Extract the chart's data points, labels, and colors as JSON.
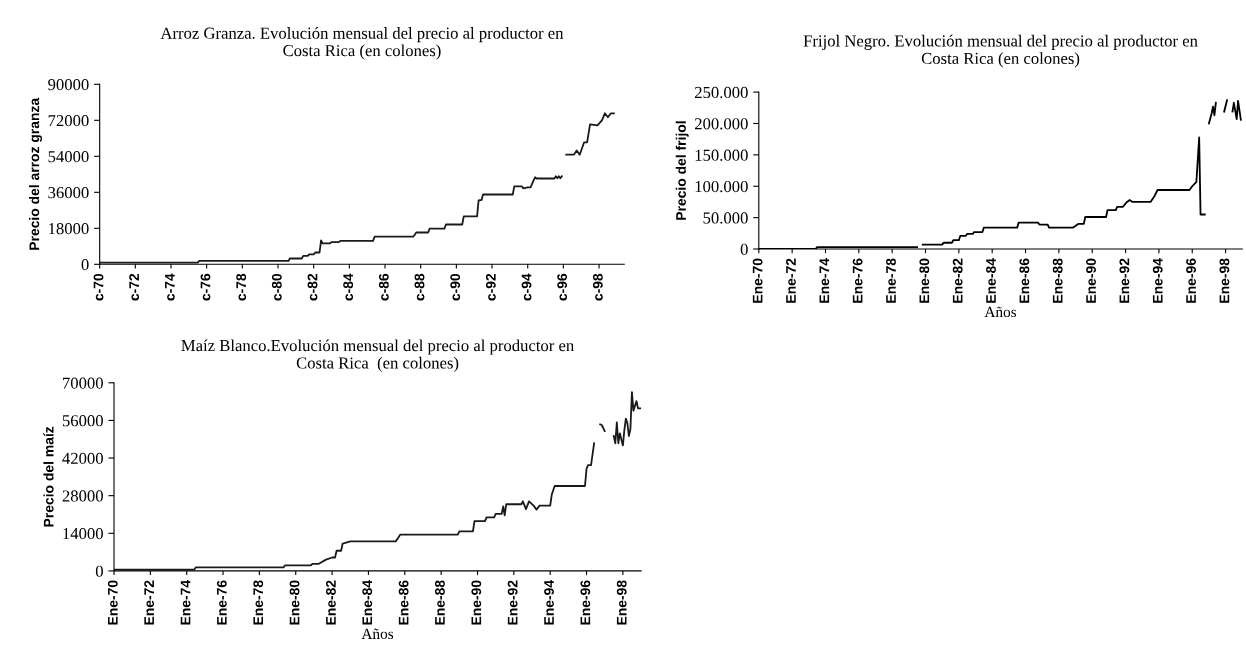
{
  "chart_data": [
    {
      "type": "line",
      "title": "Arroz Granza. Evolución mensual del precio al productor en\nCosta Rica (en colones)",
      "ylabel": "Precio del arroz granza",
      "xlim": [
        "1970-01",
        "1999-06"
      ],
      "ylim": [
        0,
        90000
      ],
      "yticks": [
        0,
        18000,
        36000,
        54000,
        72000,
        90000
      ],
      "xticks": [
        {
          "value": "1970-01",
          "label": "c-70"
        },
        {
          "value": "1972-01",
          "label": "c-72"
        },
        {
          "value": "1974-01",
          "label": "c-74"
        },
        {
          "value": "1976-01",
          "label": "c-76"
        },
        {
          "value": "1978-01",
          "label": "c-78"
        },
        {
          "value": "1980-01",
          "label": "c-80"
        },
        {
          "value": "1982-01",
          "label": "c-82"
        },
        {
          "value": "1984-01",
          "label": "c-84"
        },
        {
          "value": "1986-01",
          "label": "c-86"
        },
        {
          "value": "1988-01",
          "label": "c-88"
        },
        {
          "value": "1990-01",
          "label": "c-90"
        },
        {
          "value": "1992-01",
          "label": "c-92"
        },
        {
          "value": "1994-01",
          "label": "c-94"
        },
        {
          "value": "1996-01",
          "label": "c-96"
        },
        {
          "value": "1998-01",
          "label": "c-98"
        }
      ],
      "grid": false,
      "series": [
        {
          "color": "#1a1a1a",
          "x": [
            "1970-01",
            "1975-07",
            "1975-08",
            "1980-08",
            "1980-09",
            "1981-05",
            "1981-06",
            "1981-09",
            "1981-10",
            "1982-01",
            "1982-02",
            "1982-05",
            "1982-06",
            "1982-07",
            "1982-12",
            "1983-01",
            "1983-06",
            "1983-07",
            "1985-05",
            "1985-06",
            "1987-08",
            "1987-09",
            "1987-10",
            "1988-06",
            "1988-07",
            "1989-05",
            "1989-06",
            "1990-05",
            "1990-06",
            "1991-03",
            "1991-04",
            "1991-06",
            "1991-07",
            "1993-03",
            "1993-04",
            "1993-09",
            "1993-10",
            "1994-01",
            "1994-03",
            "1994-05",
            "1994-06",
            "1994-07",
            "1995-07",
            "1995-08",
            "1995-09",
            "1995-10",
            "1995-11",
            "1995-12",
            "1996-02",
            "1996-03",
            "1996-08",
            "1996-10",
            "1996-12",
            "1997-03",
            "1997-05",
            "1997-07",
            "1997-12",
            "1998-03",
            "1998-05",
            "1998-07",
            "1998-09",
            "1998-11"
          ],
          "values": [
            800,
            800,
            1700,
            1700,
            2900,
            2900,
            4200,
            4200,
            5000,
            5000,
            5900,
            5900,
            12000,
            10500,
            10500,
            11100,
            11100,
            11700,
            11700,
            13800,
            13800,
            14800,
            15900,
            15900,
            17800,
            17800,
            19900,
            19900,
            24000,
            24000,
            31900,
            32200,
            34900,
            34900,
            39000,
            39000,
            38000,
            38500,
            38500,
            42000,
            43500,
            42900,
            42900,
            44000,
            43000,
            44000,
            43000,
            44000,
            null,
            54800,
            54800,
            56900,
            54800,
            61000,
            61000,
            70000,
            69500,
            72000,
            75500,
            73500,
            75500,
            75500
          ]
        }
      ]
    },
    {
      "type": "line",
      "title": "Frijol Negro. Evolución mensual del precio al productor en\nCosta Rica (en colones)",
      "ylabel": "Precio del frijol",
      "xlabel": "Años",
      "xlim": [
        "1970-01",
        "1999-01"
      ],
      "ylim": [
        0,
        250000
      ],
      "yticks": [
        0,
        {
          "value": 50000,
          "label": "50.000"
        },
        {
          "value": 100000,
          "label": "100.000"
        },
        {
          "value": 150000,
          "label": "150.000"
        },
        {
          "value": 200000,
          "label": "200.000"
        },
        {
          "value": 250000,
          "label": "250.000"
        }
      ],
      "xticks": [
        {
          "value": "1970-01",
          "label": "Ene-70"
        },
        {
          "value": "1972-01",
          "label": "Ene-72"
        },
        {
          "value": "1974-01",
          "label": "Ene-74"
        },
        {
          "value": "1976-01",
          "label": "Ene-76"
        },
        {
          "value": "1978-01",
          "label": "Ene-78"
        },
        {
          "value": "1980-01",
          "label": "Ene-80"
        },
        {
          "value": "1982-01",
          "label": "Ene-82"
        },
        {
          "value": "1984-01",
          "label": "Ene-84"
        },
        {
          "value": "1986-01",
          "label": "Ene-86"
        },
        {
          "value": "1988-01",
          "label": "Ene-88"
        },
        {
          "value": "1990-01",
          "label": "Ene-90"
        },
        {
          "value": "1992-01",
          "label": "Ene-92"
        },
        {
          "value": "1994-01",
          "label": "Ene-94"
        },
        {
          "value": "1996-01",
          "label": "Ene-96"
        },
        {
          "value": "1998-01",
          "label": "Ene-98"
        }
      ],
      "grid": false,
      "series": [
        {
          "color": "#000000",
          "x": [
            "1970-01",
            "1973-06",
            "1973-07",
            "1979-07",
            "1979-09",
            "1979-11",
            "1981-01",
            "1981-02",
            "1981-08",
            "1981-09",
            "1982-01",
            "1982-02",
            "1982-06",
            "1982-07",
            "1982-11",
            "1982-12",
            "1983-06",
            "1983-07",
            "1985-07",
            "1985-08",
            "1986-10",
            "1986-11",
            "1987-05",
            "1987-06",
            "1988-11",
            "1989-03",
            "1989-07",
            "1989-08",
            "1990-11",
            "1990-12",
            "1991-06",
            "1991-07",
            "1991-11",
            "1992-02",
            "1992-04",
            "1992-06",
            "1993-07",
            "1993-10",
            "1993-12",
            "1995-11",
            "1996-01",
            "1996-04",
            "1996-06",
            "1996-07",
            "1996-10",
            "1996-11",
            "1997-01",
            "1997-03",
            "1997-04",
            "1997-05",
            "1997-06",
            "1997-09",
            "1997-12",
            "1998-02",
            "1998-04",
            "1998-06",
            "1998-07",
            "1998-09",
            "1998-10",
            "1998-12"
          ],
          "values": [
            0,
            0,
            3000,
            3000,
            null,
            7000,
            7000,
            10000,
            10000,
            14000,
            14000,
            21000,
            21000,
            24000,
            24000,
            27000,
            27000,
            34000,
            34000,
            42000,
            42000,
            39000,
            39000,
            34000,
            34000,
            40000,
            40000,
            51000,
            51000,
            62000,
            62000,
            67000,
            67000,
            75000,
            78000,
            75000,
            75000,
            85000,
            94000,
            94000,
            100000,
            107000,
            178000,
            55000,
            55000,
            null,
            200000,
            216000,
            227000,
            213000,
            233000,
            null,
            219000,
            237000,
            null,
            219000,
            233000,
            207000,
            236000,
            206000
          ]
        }
      ]
    },
    {
      "type": "line",
      "title": "Maíz Blanco.Evolución mensual del precio al productor en\nCosta Rica  (en colones)",
      "ylabel": "Precio del maíz",
      "xlabel": "Años",
      "xlim": [
        "1970-01",
        "1999-01"
      ],
      "ylim": [
        0,
        70000
      ],
      "yticks": [
        0,
        14000,
        28000,
        42000,
        56000,
        70000
      ],
      "xticks": [
        {
          "value": "1970-01",
          "label": "Ene-70"
        },
        {
          "value": "1972-01",
          "label": "Ene-72"
        },
        {
          "value": "1974-01",
          "label": "Ene-74"
        },
        {
          "value": "1976-01",
          "label": "Ene-76"
        },
        {
          "value": "1978-01",
          "label": "Ene-78"
        },
        {
          "value": "1980-01",
          "label": "Ene-80"
        },
        {
          "value": "1982-01",
          "label": "Ene-82"
        },
        {
          "value": "1984-01",
          "label": "Ene-84"
        },
        {
          "value": "1986-01",
          "label": "Ene-86"
        },
        {
          "value": "1988-01",
          "label": "Ene-88"
        },
        {
          "value": "1990-01",
          "label": "Ene-90"
        },
        {
          "value": "1992-01",
          "label": "Ene-92"
        },
        {
          "value": "1994-01",
          "label": "Ene-94"
        },
        {
          "value": "1996-01",
          "label": "Ene-96"
        },
        {
          "value": "1998-01",
          "label": "Ene-98"
        }
      ],
      "grid": false,
      "series": [
        {
          "color": "#1a1a1a",
          "x": [
            "1970-01",
            "1974-06",
            "1974-07",
            "1979-05",
            "1979-06",
            "1980-11",
            "1980-12",
            "1981-04",
            "1981-09",
            "1982-01",
            "1982-03",
            "1982-04",
            "1982-07",
            "1982-08",
            "1983-01",
            "1985-07",
            "1985-09",
            "1985-10",
            "1988-12",
            "1989-01",
            "1989-10",
            "1989-11",
            "1990-06",
            "1990-07",
            "1990-12",
            "1991-01",
            "1991-05",
            "1991-06",
            "1991-07",
            "1991-08",
            "1992-06",
            "1992-07",
            "1992-09",
            "1992-11",
            "1993-02",
            "1993-04",
            "1993-06",
            "1994-01",
            "1994-02",
            "1994-04",
            "1995-12",
            "1996-01",
            "1996-02",
            "1996-04",
            "1996-06",
            "1996-08",
            "1996-10",
            "1996-11",
            "1997-01",
            "1997-04",
            "1997-07",
            "1997-08",
            "1997-09",
            "1997-10",
            "1997-11",
            "1998-01",
            "1998-02",
            "1998-03",
            "1998-04",
            "1998-05",
            "1998-06",
            "1998-07",
            "1998-08",
            "1998-10",
            "1998-11",
            "1999-01"
          ],
          "values": [
            500,
            500,
            1300,
            1300,
            2100,
            2100,
            2600,
            2600,
            4200,
            5000,
            5000,
            7500,
            7500,
            10200,
            11000,
            11000,
            12600,
            13500,
            13500,
            14700,
            14700,
            18500,
            18500,
            19900,
            19900,
            21200,
            21200,
            24000,
            20700,
            24800,
            24800,
            25900,
            23000,
            25900,
            24300,
            22800,
            24300,
            24300,
            28400,
            31600,
            31600,
            38000,
            39400,
            39400,
            47500,
            null,
            54500,
            54300,
            52000,
            null,
            50200,
            47500,
            55300,
            47500,
            51200,
            46700,
            52700,
            56700,
            55000,
            50200,
            52800,
            66500,
            59600,
            63200,
            60500,
            60500
          ]
        }
      ]
    }
  ]
}
